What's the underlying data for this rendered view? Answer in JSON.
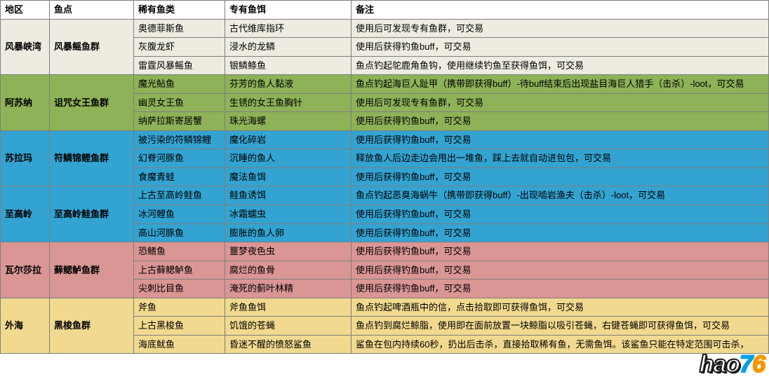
{
  "header": {
    "region": "地区",
    "spot": "鱼点",
    "rare": "稀有鱼类",
    "bait": "专有鱼饵",
    "notes": "备注"
  },
  "groups": [
    {
      "region": "风暴峡湾",
      "spot": "风暴鳐鱼群",
      "bg_region": "#eeece1",
      "bg_spot": "#eeece1",
      "rows": [
        {
          "rare": "奥德菲斯鱼",
          "bait": "古代维库指环",
          "note": "使用后可发现专有鱼群，可交易",
          "bg": "#eeece1"
        },
        {
          "rare": "灰腹龙虾",
          "bait": "浸水的龙鳞",
          "note": "使用后获得钓鱼buff，可交易",
          "bg": "#eeece1"
        },
        {
          "rare": "雷霆风暴鳐鱼",
          "bait": "银鳞鲦鱼",
          "note": "鱼点钓起鸵鹿角鱼钩，使用继续钓鱼至获得鱼饵，可交易",
          "bg": "#eeece1"
        }
      ]
    },
    {
      "region": "阿苏纳",
      "spot": "诅咒女王鱼群",
      "bg_region": "#8db257",
      "bg_spot": "#8db257",
      "rows": [
        {
          "rare": "魔光鲇鱼",
          "bait": "芬芳的鱼人黏液",
          "note": "鱼点钓起海巨人趾甲（携带即获得buff）-待buff结束后出现盐目海巨人猎手（击杀）-loot，可交易",
          "bg": "#8db257"
        },
        {
          "rare": "幽灵女王鱼",
          "bait": "生锈的女王鱼胸针",
          "note": "使用后可发现专有鱼群，可交易",
          "bg": "#8db257"
        },
        {
          "rare": "纳萨拉斯寄居蟹",
          "bait": "珠光海螺",
          "note": "使用后获得钓鱼buff，可交易",
          "bg": "#8db257"
        }
      ]
    },
    {
      "region": "苏拉玛",
      "spot": "符鳞锦鲤鱼群",
      "bg_region": "#33a3d1",
      "bg_spot": "#33a3d1",
      "rows": [
        {
          "rare": "被污染的符鳞锦鲤",
          "bait": "魔化碎岩",
          "note": "使用后获得钓鱼buff，可交易",
          "bg": "#33a3d1"
        },
        {
          "rare": "幻脊河豚鱼",
          "bait": "沉睡的鱼人",
          "note": "释放鱼人后边走边会甩出一堆鱼，踩上去就自动进包包，可交易",
          "bg": "#33a3d1"
        },
        {
          "rare": "食魔青蛙",
          "bait": "魔法鱼饵",
          "note": "使用后获得钓鱼buff，可交易",
          "bg": "#33a3d1"
        }
      ]
    },
    {
      "region": "至高岭",
      "spot": "至高岭鲑鱼群",
      "bg_region": "#33a3d1",
      "bg_spot": "#33a3d1",
      "rows": [
        {
          "rare": "上古至高岭鲑鱼",
          "bait": "鲑鱼诱饵",
          "note": "鱼点钓起恶臭海蜗牛（携带即获得buff）-出现啮岩渔夫（击杀）-loot，可交易",
          "bg": "#33a3d1"
        },
        {
          "rare": "冰河鲤鱼",
          "bait": "冰霜蠕虫",
          "note": "使用后获得钓鱼buff，可交易",
          "bg": "#33a3d1"
        },
        {
          "rare": "高山河豚鱼",
          "bait": "膨胀的鱼人卵",
          "note": "使用后获得钓鱼buff，可交易",
          "bg": "#33a3d1"
        }
      ]
    },
    {
      "region": "瓦尔莎拉",
      "spot": "藓鳃鲈鱼群",
      "bg_region": "#d99694",
      "bg_spot": "#d99694",
      "rows": [
        {
          "rare": "恐鳍鱼",
          "bait": "噩梦夜色虫",
          "note": "使用后获得钓鱼buff，可交易",
          "bg": "#d99694"
        },
        {
          "rare": "上古藓鳃鲈鱼",
          "bait": "腐烂的鱼骨",
          "note": "使用后获得钓鱼buff，可交易",
          "bg": "#d99694"
        },
        {
          "rare": "尖刺比目鱼",
          "bait": "淹死的蓟叶林精",
          "note": "使用后获得钓鱼buff，可交易",
          "bg": "#d99694"
        }
      ]
    },
    {
      "region": "外海",
      "spot": "黑梭鱼群",
      "bg_region": "#f1d98f",
      "bg_spot": "#f1d98f",
      "rows": [
        {
          "rare": "斧鱼",
          "bait": "斧鱼鱼饵",
          "note": "鱼点钓起啤酒瓶中的信，点击拾取即可获得鱼饵，可交易",
          "bg": "#f1d98f"
        },
        {
          "rare": "上古黑梭鱼",
          "bait": "饥饿的苍蝇",
          "note": "鱼点钓到腐烂鲸脂，使用即在面前放置一块鲸脂以吸引苍蝇，右键苍蝇即可获得鱼饵，可交易",
          "bg": "#f1d98f"
        },
        {
          "rare": "海底鱿鱼",
          "bait": "昏迷不醒的愤怒鲨鱼",
          "note": "鲨鱼在包内持续60秒，扔出后击杀，直接拾取稀有鱼，无需鱼饵。该鲨鱼只能在特定范围可击杀，",
          "bg": "#f1d98f"
        }
      ]
    }
  ],
  "logo": {
    "text": "hao76"
  }
}
